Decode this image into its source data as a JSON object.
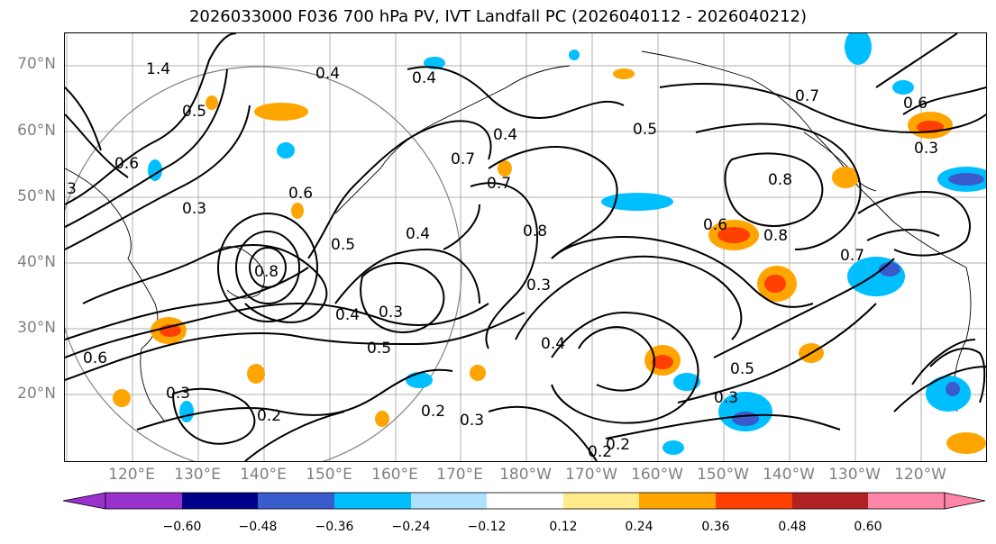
{
  "title": "2026033000 F036 700 hPa PV, IVT Landfall PC (2026040112 - 2026040212)",
  "lat_labels": [
    "70°N",
    "60°N",
    "50°N",
    "40°N",
    "30°N",
    "20°N"
  ],
  "lon_labels": [
    "120°E",
    "130°E",
    "140°E",
    "150°E",
    "160°E",
    "170°E",
    "180°W",
    "170°W",
    "160°W",
    "150°W",
    "140°W",
    "130°W",
    "120°W"
  ],
  "colorbar": {
    "ticks": [
      "−0.60",
      "−0.48",
      "−0.36",
      "−0.24",
      "−0.12",
      "0.12",
      "0.24",
      "0.36",
      "0.48",
      "0.60"
    ],
    "colors": [
      "#9932cc",
      "#00008b",
      "#3a5bcc",
      "#00bfff",
      "#b0e0ff",
      "#ffffff",
      "#ffeb8a",
      "#ffa500",
      "#ff4000",
      "#b22222",
      "#ff85a8"
    ]
  },
  "contour_labels": [
    "0.4",
    "0.4",
    "0.4",
    "0.4",
    "0.4",
    "0.4",
    "0.5",
    "0.5",
    "0.5",
    "0.5",
    "0.5",
    "0.6",
    "0.6",
    "0.6",
    "0.6",
    "0.6",
    "0.7",
    "0.7",
    "0.7",
    "0.7",
    "0.8",
    "0.8",
    "0.8",
    "0.8",
    "0.3",
    "0.3",
    "0.3",
    "0.3",
    "0.3",
    "0.3",
    "0.3",
    "0.2",
    "0.2",
    "0.2",
    "0.2",
    "1.4",
    "3"
  ]
}
